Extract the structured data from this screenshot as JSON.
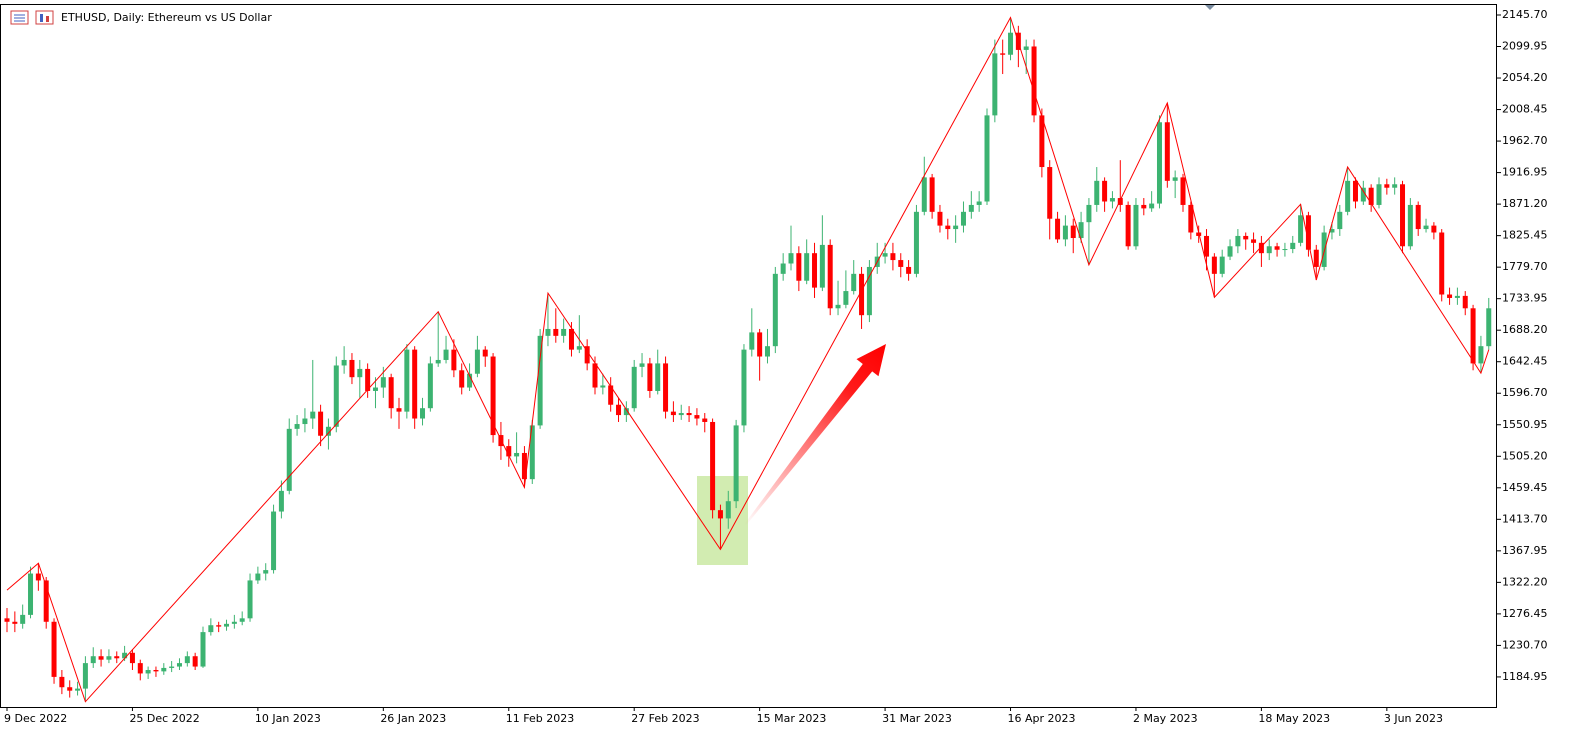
{
  "chart_data": {
    "type": "candlestick",
    "title": "ETHUSD, Daily:  Ethereum vs US Dollar",
    "categories": [
      "9 Dec 2022",
      null,
      null,
      null,
      null,
      null,
      null,
      null,
      null,
      null,
      null,
      null,
      null,
      null,
      null,
      null,
      "25 Dec 2022",
      null,
      null,
      null,
      null,
      null,
      null,
      null,
      null,
      null,
      null,
      null,
      null,
      null,
      null,
      null,
      "10 Jan 2023",
      null,
      null,
      null,
      null,
      null,
      null,
      null,
      null,
      null,
      null,
      null,
      null,
      null,
      null,
      null,
      "26 Jan 2023",
      null,
      null,
      null,
      null,
      null,
      null,
      null,
      null,
      null,
      null,
      null,
      null,
      null,
      null,
      null,
      "11 Feb 2023",
      null,
      null,
      null,
      null,
      null,
      null,
      null,
      null,
      null,
      null,
      null,
      null,
      null,
      null,
      null,
      "27 Feb 2023",
      null,
      null,
      null,
      null,
      null,
      null,
      null,
      null,
      null,
      null,
      null,
      null,
      null,
      null,
      null,
      "15 Mar 2023",
      null,
      null,
      null,
      null,
      null,
      null,
      null,
      null,
      null,
      null,
      null,
      null,
      null,
      null,
      null,
      "31 Mar 2023",
      null,
      null,
      null,
      null,
      null,
      null,
      null,
      null,
      null,
      null,
      null,
      null,
      null,
      null,
      null,
      "16 Apr 2023",
      null,
      null,
      null,
      null,
      null,
      null,
      null,
      null,
      null,
      null,
      null,
      null,
      null,
      null,
      null,
      "2 May 2023",
      null,
      null,
      null,
      null,
      null,
      null,
      null,
      null,
      null,
      null,
      null,
      null,
      null,
      null,
      null,
      "18 May 2023",
      null,
      null,
      null,
      null,
      null,
      null,
      null,
      null,
      null,
      null,
      null,
      null,
      null,
      null,
      null,
      "3 Jun 2023",
      null,
      null,
      null,
      null,
      null,
      null,
      null,
      null,
      null,
      null,
      null,
      null,
      null
    ],
    "open": [
      1270,
      1265,
      1262,
      1275,
      1335,
      1325,
      1265,
      1185,
      1170,
      1165,
      1168,
      1205,
      1215,
      1210,
      1215,
      1212,
      1220,
      1205,
      1190,
      1195,
      1193,
      1198,
      1200,
      1205,
      1215,
      1200,
      1250,
      1260,
      1258,
      1262,
      1265,
      1270,
      1325,
      1335,
      1340,
      1425,
      1455,
      1545,
      1552,
      1560,
      1570,
      1535,
      1548,
      1637,
      1645,
      1620,
      1632,
      1600,
      1605,
      1620,
      1575,
      1570,
      1660,
      1560,
      1575,
      1640,
      1645,
      1660,
      1630,
      1605,
      1625,
      1660,
      1650,
      1536,
      1520,
      1505,
      1510,
      1472,
      1550,
      1680,
      1690,
      1680,
      1690,
      1660,
      1665,
      1640,
      1605,
      1608,
      1580,
      1565,
      1575,
      1635,
      1640,
      1600,
      1640,
      1570,
      1565,
      1568,
      1565,
      1560,
      1555,
      1427,
      1415,
      1440,
      1550,
      1660,
      1685,
      1650,
      1665,
      1770,
      1785,
      1800,
      1760,
      1800,
      1750,
      1812,
      1720,
      1725,
      1745,
      1770,
      1710,
      1780,
      1795,
      1800,
      1790,
      1780,
      1770,
      1860,
      1910,
      1860,
      1840,
      1835,
      1840,
      1860,
      1870,
      1875,
      2000,
      2090,
      2088,
      2120,
      2095,
      2100,
      2000,
      1925,
      1850,
      1820,
      1840,
      1822,
      1845,
      1870,
      1905,
      1875,
      1880,
      1870,
      1810,
      1870,
      1865,
      1872,
      1990,
      1905,
      1910,
      1870,
      1830,
      1825,
      1795,
      1770,
      1795,
      1810,
      1825,
      1820,
      1815,
      1800,
      1810,
      1805,
      1806,
      1815,
      1855,
      1805,
      1780,
      1830,
      1835,
      1860,
      1905,
      1875,
      1895,
      1870,
      1900,
      1895,
      1900,
      1810,
      1870,
      1835,
      1840,
      1830,
      1740,
      1735,
      1738,
      1720,
      1640,
      1665
    ],
    "high": [
      1285,
      1280,
      1290,
      1345,
      1350,
      1330,
      1270,
      1195,
      1180,
      1178,
      1215,
      1228,
      1225,
      1225,
      1222,
      1230,
      1225,
      1210,
      1200,
      1200,
      1205,
      1208,
      1212,
      1222,
      1220,
      1258,
      1270,
      1265,
      1268,
      1275,
      1280,
      1335,
      1345,
      1350,
      1435,
      1470,
      1560,
      1565,
      1575,
      1645,
      1580,
      1560,
      1650,
      1665,
      1655,
      1645,
      1640,
      1620,
      1635,
      1625,
      1590,
      1668,
      1665,
      1590,
      1650,
      1715,
      1680,
      1675,
      1640,
      1640,
      1680,
      1665,
      1655,
      1555,
      1530,
      1540,
      1520,
      1558,
      1690,
      1742,
      1720,
      1705,
      1700,
      1710,
      1675,
      1650,
      1625,
      1620,
      1590,
      1585,
      1645,
      1655,
      1648,
      1660,
      1650,
      1585,
      1580,
      1578,
      1575,
      1568,
      1560,
      1435,
      1455,
      1558,
      1668,
      1720,
      1690,
      1690,
      1780,
      1800,
      1840,
      1810,
      1820,
      1815,
      1855,
      1820,
      1760,
      1775,
      1790,
      1780,
      1790,
      1815,
      1815,
      1815,
      1800,
      1790,
      1870,
      1940,
      1915,
      1870,
      1850,
      1855,
      1875,
      1890,
      1890,
      2010,
      2110,
      2110,
      2142,
      2130,
      2110,
      2110,
      2010,
      1935,
      1860,
      1855,
      1850,
      1860,
      1880,
      1925,
      1910,
      1890,
      1935,
      1875,
      1880,
      1880,
      1890,
      2000,
      2018,
      1920,
      1915,
      1875,
      1840,
      1835,
      1800,
      1805,
      1820,
      1835,
      1830,
      1830,
      1825,
      1820,
      1815,
      1815,
      1825,
      1871,
      1860,
      1812,
      1840,
      1845,
      1870,
      1925,
      1910,
      1905,
      1900,
      1910,
      1908,
      1910,
      1905,
      1880,
      1875,
      1850,
      1845,
      1835,
      1750,
      1750,
      1745,
      1725,
      1680,
      1735
    ],
    "low": [
      1250,
      1250,
      1255,
      1270,
      1310,
      1255,
      1175,
      1160,
      1155,
      1158,
      1149,
      1198,
      1200,
      1205,
      1205,
      1208,
      1195,
      1180,
      1182,
      1185,
      1188,
      1192,
      1195,
      1200,
      1195,
      1198,
      1245,
      1250,
      1252,
      1255,
      1260,
      1265,
      1320,
      1325,
      1335,
      1415,
      1450,
      1535,
      1540,
      1545,
      1520,
      1515,
      1540,
      1625,
      1610,
      1590,
      1590,
      1575,
      1590,
      1560,
      1545,
      1560,
      1545,
      1550,
      1570,
      1635,
      1640,
      1620,
      1595,
      1600,
      1620,
      1635,
      1525,
      1500,
      1490,
      1495,
      1460,
      1465,
      1545,
      1665,
      1670,
      1670,
      1650,
      1655,
      1630,
      1595,
      1595,
      1570,
      1555,
      1555,
      1570,
      1620,
      1590,
      1595,
      1560,
      1555,
      1558,
      1555,
      1550,
      1540,
      1415,
      1370,
      1400,
      1430,
      1540,
      1650,
      1615,
      1640,
      1655,
      1760,
      1775,
      1745,
      1755,
      1735,
      1745,
      1710,
      1710,
      1720,
      1740,
      1690,
      1700,
      1770,
      1785,
      1775,
      1765,
      1760,
      1765,
      1855,
      1850,
      1830,
      1820,
      1815,
      1830,
      1850,
      1860,
      1870,
      1990,
      2060,
      2080,
      2070,
      2060,
      1990,
      1910,
      1820,
      1815,
      1810,
      1800,
      1815,
      1783,
      1860,
      1860,
      1865,
      1860,
      1805,
      1805,
      1855,
      1860,
      1865,
      1895,
      1880,
      1860,
      1820,
      1815,
      1775,
      1736,
      1765,
      1790,
      1800,
      1805,
      1800,
      1780,
      1790,
      1795,
      1795,
      1800,
      1810,
      1795,
      1761,
      1775,
      1820,
      1825,
      1855,
      1865,
      1870,
      1860,
      1865,
      1885,
      1885,
      1800,
      1805,
      1825,
      1830,
      1820,
      1730,
      1725,
      1725,
      1710,
      1630,
      1626,
      1660
    ],
    "close": [
      1265,
      1262,
      1275,
      1335,
      1325,
      1265,
      1185,
      1170,
      1165,
      1168,
      1205,
      1215,
      1210,
      1215,
      1212,
      1220,
      1205,
      1190,
      1195,
      1193,
      1198,
      1200,
      1205,
      1215,
      1200,
      1250,
      1260,
      1258,
      1262,
      1265,
      1270,
      1325,
      1335,
      1340,
      1425,
      1455,
      1545,
      1552,
      1560,
      1570,
      1535,
      1548,
      1637,
      1645,
      1620,
      1632,
      1600,
      1605,
      1620,
      1575,
      1570,
      1660,
      1560,
      1575,
      1640,
      1645,
      1660,
      1630,
      1605,
      1625,
      1660,
      1650,
      1536,
      1520,
      1505,
      1510,
      1472,
      1550,
      1680,
      1690,
      1680,
      1690,
      1660,
      1665,
      1640,
      1605,
      1608,
      1580,
      1565,
      1575,
      1635,
      1640,
      1600,
      1640,
      1570,
      1565,
      1568,
      1565,
      1560,
      1555,
      1427,
      1415,
      1440,
      1550,
      1660,
      1685,
      1650,
      1665,
      1770,
      1785,
      1800,
      1760,
      1800,
      1750,
      1812,
      1720,
      1725,
      1745,
      1770,
      1710,
      1780,
      1795,
      1800,
      1790,
      1780,
      1770,
      1860,
      1910,
      1860,
      1840,
      1835,
      1840,
      1860,
      1870,
      1875,
      2000,
      2090,
      2088,
      2120,
      2095,
      2100,
      2000,
      1925,
      1850,
      1820,
      1840,
      1822,
      1845,
      1870,
      1905,
      1875,
      1880,
      1870,
      1810,
      1870,
      1865,
      1872,
      1990,
      1905,
      1910,
      1870,
      1830,
      1825,
      1795,
      1770,
      1795,
      1810,
      1825,
      1820,
      1815,
      1800,
      1810,
      1805,
      1806,
      1815,
      1855,
      1805,
      1780,
      1830,
      1835,
      1860,
      1905,
      1875,
      1895,
      1870,
      1900,
      1895,
      1900,
      1810,
      1870,
      1835,
      1840,
      1830,
      1740,
      1735,
      1738,
      1720,
      1640,
      1665,
      1720
    ],
    "up_color": "#3cb371",
    "down_color": "#ff0000",
    "ylim": [
      1141.3,
      2160.2
    ],
    "yticks": [
      {
        "value": 2145.7,
        "label": "2145.70"
      },
      2099.95,
      {
        "value": 2054.2,
        "label": "2054.20"
      },
      2008.45,
      {
        "value": 1962.7,
        "label": "1962.70"
      },
      1916.95,
      {
        "value": 1871.2,
        "label": "1871.20"
      },
      1825.45,
      {
        "value": 1779.7,
        "label": "1779.70"
      },
      1733.95,
      {
        "value": 1688.2,
        "label": "1688.20"
      },
      1642.45,
      {
        "value": 1596.7,
        "label": "1596.70"
      },
      1550.95,
      {
        "value": 1505.2,
        "label": "1505.20"
      },
      1459.45,
      {
        "value": 1413.7,
        "label": "1413.70"
      },
      1367.95,
      {
        "value": 1322.2,
        "label": "1322.20"
      },
      1276.45,
      {
        "value": 1230.7,
        "label": "1230.70"
      },
      1184.95
    ],
    "zigzag": {
      "color": "#ff0000",
      "x": [
        0,
        4,
        10,
        55,
        66,
        69,
        91,
        128,
        138,
        148,
        154,
        165,
        167,
        171,
        188,
        189
      ],
      "values": [
        1311,
        1350,
        1149,
        1715,
        1460,
        1742,
        1370,
        2142,
        1783,
        2018,
        1736,
        1871,
        1761,
        1925,
        1626,
        1660
      ]
    }
  }
}
